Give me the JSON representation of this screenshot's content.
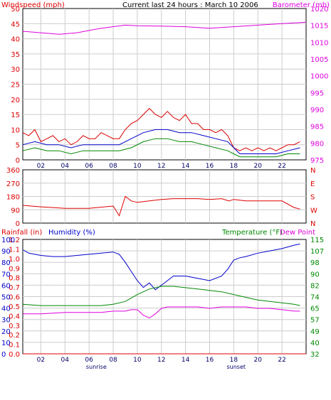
{
  "colors": {
    "wind": "#dd0000",
    "wind_avg": "#0000cc",
    "wind_low": "#008800",
    "barometer": "#dd00dd",
    "direction": "#dd0000",
    "rain": "#dd0000",
    "humidity": "#0000cc",
    "temperature": "#008800",
    "dewpoint": "#dd00dd",
    "grid": "#cccccc"
  },
  "chart_data": [
    {
      "type": "line",
      "title": "Current last 24 hours : March 10 2006",
      "left_axis_label": "Windspeed (mph)",
      "right_axis_label": "Barometer (mb)",
      "left_ticks": [
        "0",
        "5",
        "10",
        "15",
        "20",
        "25",
        "30",
        "35",
        "40",
        "45",
        "50"
      ],
      "right_ticks": [
        "975",
        "980",
        "985",
        "990",
        "995",
        "1000",
        "1005",
        "1010",
        "1015",
        "1020"
      ],
      "x_ticks": [
        "02",
        "04",
        "06",
        "08",
        "10",
        "12",
        "14",
        "16",
        "18",
        "20",
        "22"
      ],
      "x_annotations": [
        {
          "label": "sunrise",
          "hour": 6.6
        },
        {
          "label": "sunset",
          "hour": 18.2
        }
      ],
      "left_range": [
        0,
        50
      ],
      "right_range": [
        974,
        1024
      ],
      "x_range": [
        0.5,
        24
      ],
      "series": [
        {
          "key": "barometer",
          "axis": "right",
          "hours": [
            0.5,
            2,
            3.5,
            5,
            7,
            9,
            10,
            12,
            14,
            16,
            18,
            20,
            22,
            24
          ],
          "values": [
            1016.5,
            1016,
            1015.5,
            1016,
            1017.5,
            1018.5,
            1018.3,
            1018.2,
            1018,
            1017.5,
            1018,
            1018.5,
            1019,
            1019.5
          ]
        },
        {
          "key": "wind",
          "axis": "left",
          "hours": [
            0.5,
            1,
            1.5,
            2,
            2.5,
            3,
            3.5,
            4,
            4.5,
            5,
            5.5,
            6,
            6.5,
            7,
            7.5,
            8,
            8.5,
            9,
            9.5,
            10,
            10.5,
            11,
            11.5,
            12,
            12.5,
            13,
            13.5,
            14,
            14.5,
            15,
            15.5,
            16,
            16.5,
            17,
            17.5,
            18,
            18.5,
            19,
            19.5,
            20,
            20.5,
            21,
            21.5,
            22,
            22.5,
            23,
            23.5
          ],
          "values": [
            9,
            8,
            10,
            6,
            7,
            8,
            6,
            7,
            5,
            6,
            8,
            7,
            7,
            9,
            8,
            7,
            7,
            10,
            12,
            13,
            15,
            17,
            15,
            14,
            16,
            14,
            13,
            15,
            12,
            12,
            10,
            10,
            9,
            10,
            8,
            4,
            3,
            4,
            3,
            4,
            3,
            4,
            3,
            4,
            5,
            5,
            6
          ]
        },
        {
          "key": "wind_avg",
          "axis": "left",
          "hours": [
            0.5,
            1.5,
            2.5,
            3.5,
            4.5,
            5.5,
            6.5,
            7.5,
            8.5,
            9.5,
            10.5,
            11.5,
            12.5,
            13.5,
            14.5,
            15.5,
            16.5,
            17.5,
            18,
            18.5,
            19.5,
            20.5,
            21.5,
            22.5,
            23.5
          ],
          "values": [
            5,
            6,
            5,
            5,
            4,
            5,
            5,
            5,
            5,
            7,
            9,
            10,
            10,
            9,
            9,
            8,
            7,
            6,
            4,
            2,
            2,
            2,
            2,
            3,
            4
          ]
        },
        {
          "key": "wind_low",
          "axis": "left",
          "hours": [
            0.5,
            1.5,
            2.5,
            3.5,
            4.5,
            5.5,
            6.5,
            7.5,
            8.5,
            9.5,
            10.5,
            11.5,
            12.5,
            13.5,
            14.5,
            15.5,
            16.5,
            17.5,
            18,
            18.5,
            19.5,
            20.5,
            21.5,
            22.5,
            23.5
          ],
          "values": [
            3,
            4,
            3,
            3,
            2,
            3,
            3,
            3,
            3,
            4,
            6,
            7,
            7,
            6,
            6,
            5,
            4,
            3,
            2,
            1,
            1,
            1,
            1,
            2,
            2
          ]
        }
      ]
    },
    {
      "type": "line",
      "left_axis_label": "",
      "left_ticks": [
        "0",
        "90",
        "180",
        "270",
        "360"
      ],
      "right_ticks": [
        "N",
        "W",
        "S",
        "E",
        "N"
      ],
      "left_range": [
        0,
        360
      ],
      "x_range": [
        0.5,
        24
      ],
      "series": [
        {
          "key": "direction",
          "axis": "left",
          "hours": [
            0.5,
            2,
            3,
            4,
            6,
            8,
            8.5,
            9,
            9.5,
            10,
            11,
            12,
            13,
            14,
            15,
            16,
            17,
            17.6,
            18,
            18.5,
            19,
            20,
            21,
            22,
            23,
            23.5
          ],
          "values": [
            120,
            110,
            105,
            100,
            100,
            115,
            50,
            180,
            150,
            140,
            150,
            160,
            165,
            165,
            165,
            160,
            165,
            150,
            160,
            155,
            150,
            150,
            150,
            150,
            105,
            95
          ]
        }
      ]
    },
    {
      "type": "line",
      "left_axis_label": "Rainfall (in)",
      "left_axis_label_2": "Humidity (%)",
      "right_axis_label": "Temperature (°F)",
      "right_axis_label_2": "Dew Point",
      "left_ticks": [
        "0.0",
        "0.1",
        "0.2",
        "0.3",
        "0.4",
        "0.5",
        "0.6",
        "0.7",
        "0.8",
        "0.9",
        "1.0",
        "1.1",
        "1.2"
      ],
      "left_ticks_2": [
        "0",
        "10",
        "20",
        "30",
        "40",
        "50",
        "60",
        "70",
        "80",
        "90",
        "100"
      ],
      "right_ticks": [
        "32",
        "40",
        "49",
        "57",
        "65",
        "74",
        "82",
        "90",
        "98",
        "107",
        "115"
      ],
      "x_ticks": [
        "02",
        "04",
        "06",
        "08",
        "10",
        "12",
        "14",
        "16",
        "18",
        "20",
        "22"
      ],
      "x_annotations": [
        {
          "label": "sunrise",
          "hour": 6.6
        },
        {
          "label": "sunset",
          "hour": 18.2
        }
      ],
      "left_range": [
        0,
        100
      ],
      "right_range": [
        32,
        115
      ],
      "x_range": [
        0.5,
        24
      ],
      "series": [
        {
          "key": "rain",
          "axis": "left",
          "hours": [
            0.5,
            24
          ],
          "values": [
            0,
            0
          ]
        },
        {
          "key": "humidity",
          "axis": "left",
          "hours": [
            0.5,
            1,
            2,
            3,
            4,
            5,
            6,
            7,
            8,
            8.5,
            9,
            9.5,
            10,
            10.5,
            11,
            11.5,
            12,
            12.5,
            13,
            14,
            15,
            16,
            17,
            17.5,
            18,
            18.5,
            19,
            20,
            21,
            22,
            23,
            23.5
          ],
          "values": [
            91,
            88,
            86,
            85,
            85,
            86,
            87,
            88,
            89,
            87,
            80,
            72,
            64,
            58,
            62,
            56,
            60,
            64,
            68,
            68,
            66,
            64,
            68,
            74,
            82,
            84,
            85,
            88,
            90,
            92,
            95,
            96
          ]
        },
        {
          "key": "temperature",
          "axis": "right",
          "hours": [
            0.5,
            2,
            4,
            6,
            7,
            8,
            9,
            10,
            11,
            12,
            13,
            14,
            15,
            16,
            17,
            18,
            19,
            20,
            21,
            22,
            23,
            23.5
          ],
          "values": [
            68,
            67,
            67,
            67,
            67,
            68,
            70,
            75,
            79,
            81,
            81,
            80,
            79,
            78,
            77,
            75,
            73,
            71,
            70,
            69,
            68,
            67
          ]
        },
        {
          "key": "dewpoint",
          "axis": "right",
          "hours": [
            0.5,
            2,
            4,
            6,
            7,
            8,
            9,
            9.5,
            10,
            10.5,
            11,
            11.5,
            12,
            12.5,
            13,
            14,
            15,
            16,
            17,
            18,
            19,
            20,
            21,
            22,
            23,
            23.5
          ],
          "values": [
            61,
            61,
            62,
            62,
            62,
            63,
            63,
            64,
            64,
            60,
            58,
            61,
            65,
            66,
            66,
            66,
            66,
            65,
            66,
            66,
            66,
            65,
            65,
            64,
            63,
            63
          ]
        }
      ]
    }
  ]
}
